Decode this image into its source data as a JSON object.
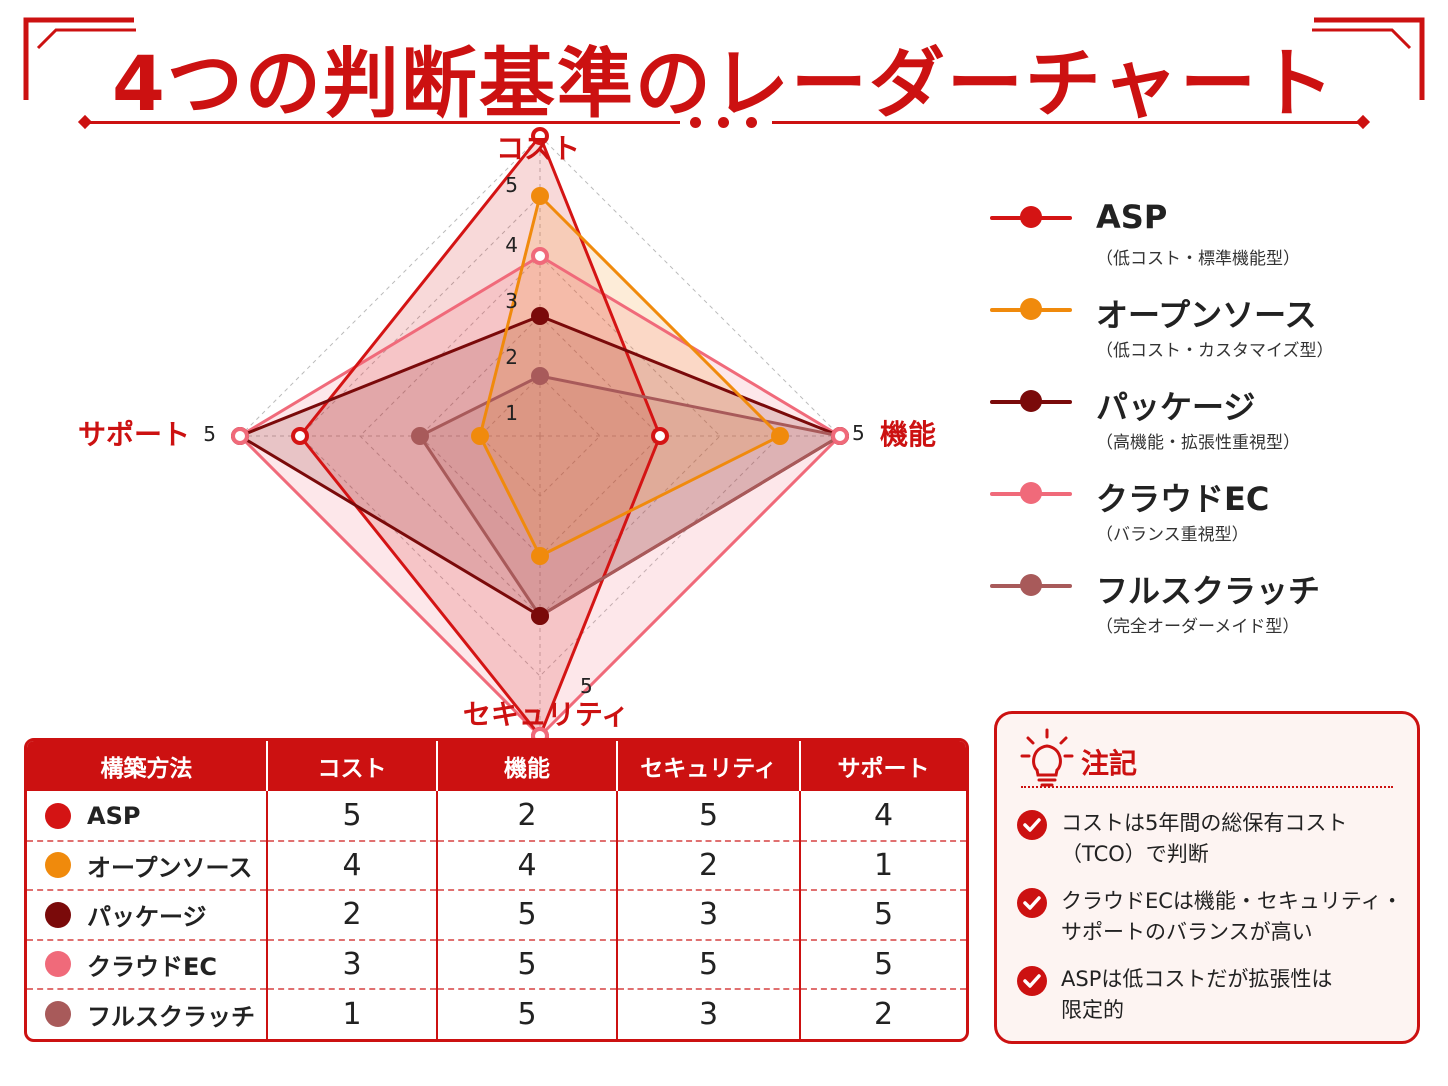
{
  "title": "4つの判断基準のレーダーチャート",
  "colors": {
    "accent": "#cc1111",
    "ASP": "#d41414",
    "オープンソース": "#f08a0c",
    "パッケージ": "#7a0a0a",
    "クラウドEC": "#f06a7a",
    "フルスクラッチ": "#a85a5a"
  },
  "chart_data": {
    "type": "radar",
    "axes": [
      "コスト",
      "機能",
      "セキュリティ",
      "サポート"
    ],
    "scale": [
      0,
      5
    ],
    "tick_labels": [
      "1",
      "2",
      "3",
      "4",
      "5"
    ],
    "axis_max_labels": [
      "5",
      "5",
      "5",
      "5"
    ],
    "grid": true,
    "legend_position": "right",
    "series": [
      {
        "name": "ASP",
        "values": [
          5,
          2,
          5,
          4
        ]
      },
      {
        "name": "オープンソース",
        "values": [
          4,
          4,
          2,
          1
        ]
      },
      {
        "name": "パッケージ",
        "values": [
          2,
          5,
          3,
          5
        ]
      },
      {
        "name": "クラウドEC",
        "values": [
          3,
          5,
          5,
          5
        ]
      },
      {
        "name": "フルスクラッチ",
        "values": [
          1,
          5,
          3,
          2
        ]
      }
    ]
  },
  "legend": [
    {
      "name": "ASP",
      "sub": "（低コスト・標準機能型）",
      "icon": "line-dot-red"
    },
    {
      "name": "オープンソース",
      "sub": "（低コスト・カスタマイズ型）",
      "icon": "line-dot-orange"
    },
    {
      "name": "パッケージ",
      "sub": "（高機能・拡張性重視型）",
      "icon": "line-dot-darkred"
    },
    {
      "name": "クラウドEC",
      "sub": "（バランス重視型）",
      "icon": "line-dot-pink"
    },
    {
      "name": "フルスクラッチ",
      "sub": "（完全オーダーメイド型）",
      "icon": "line-dot-brown"
    }
  ],
  "table": {
    "headers": [
      "構築方法",
      "コスト",
      "機能",
      "セキュリティ",
      "サポート"
    ],
    "rows": [
      {
        "name": "ASP",
        "cost": "5",
        "func": "2",
        "sec": "5",
        "support": "4"
      },
      {
        "name": "オープンソース",
        "cost": "4",
        "func": "4",
        "sec": "2",
        "support": "1"
      },
      {
        "name": "パッケージ",
        "cost": "2",
        "func": "5",
        "sec": "3",
        "support": "5"
      },
      {
        "name": "クラウドEC",
        "cost": "3",
        "func": "5",
        "sec": "5",
        "support": "5"
      },
      {
        "name": "フルスクラッチ",
        "cost": "1",
        "func": "5",
        "sec": "3",
        "support": "2"
      }
    ]
  },
  "notes": {
    "title": "注記",
    "icon": "lightbulb-icon",
    "items": [
      {
        "line1": "コストは5年間の総保有コスト",
        "line2": "（TCO）で判断"
      },
      {
        "line1": "クラウドECは機能・セキュリティ・",
        "line2": "サポートのバランスが高い"
      },
      {
        "line1": "ASPは低コストだが拡張性は",
        "line2": "限定的"
      }
    ]
  }
}
